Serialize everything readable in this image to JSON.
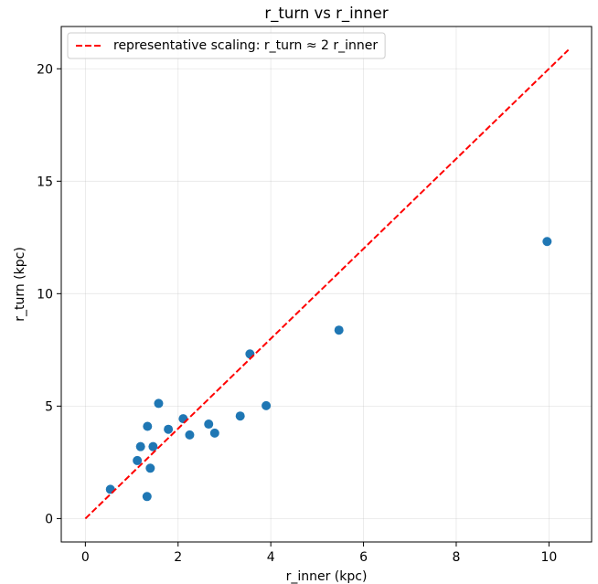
{
  "chart_data": {
    "type": "scatter",
    "title": "r_turn vs r_inner",
    "xlabel": "r_inner (kpc)",
    "ylabel": "r_turn (kpc)",
    "xlim": [
      -0.52,
      10.92
    ],
    "ylim": [
      -1.04,
      21.88
    ],
    "xticks": [
      0,
      2,
      4,
      6,
      8,
      10
    ],
    "yticks": [
      0,
      5,
      10,
      15,
      20
    ],
    "grid": true,
    "legend_position": "top-left",
    "series": [
      {
        "type": "scatter",
        "color": "#1f77b4",
        "points": [
          [
            0.54,
            1.3
          ],
          [
            1.12,
            2.58
          ],
          [
            1.19,
            3.2
          ],
          [
            1.33,
            0.98
          ],
          [
            1.34,
            4.1
          ],
          [
            1.4,
            2.24
          ],
          [
            1.46,
            3.2
          ],
          [
            1.58,
            5.12
          ],
          [
            1.79,
            3.97
          ],
          [
            2.11,
            4.44
          ],
          [
            2.25,
            3.72
          ],
          [
            2.66,
            4.2
          ],
          [
            2.79,
            3.8
          ],
          [
            3.34,
            4.56
          ],
          [
            3.55,
            7.32
          ],
          [
            3.9,
            5.02
          ],
          [
            5.47,
            8.38
          ],
          [
            9.96,
            12.32
          ]
        ]
      },
      {
        "type": "line",
        "name": "representative scaling: r_turn ≈ 2 r_inner",
        "color": "#ff0000",
        "dashed": true,
        "x": [
          0,
          10.42
        ],
        "y": [
          0,
          20.84
        ]
      }
    ]
  }
}
